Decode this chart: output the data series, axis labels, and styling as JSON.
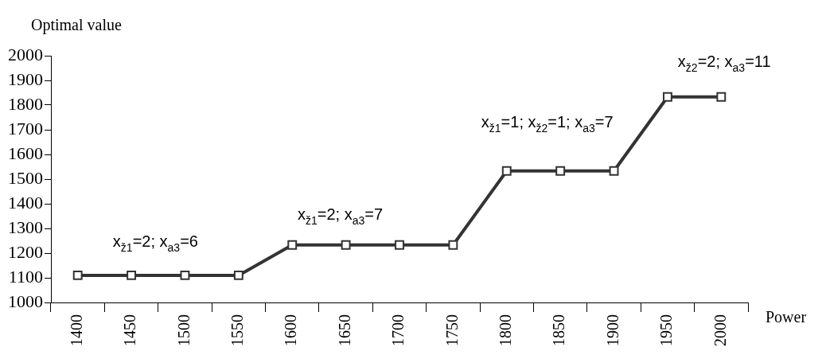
{
  "chart_data": {
    "type": "line",
    "xlabel": "Power",
    "ylabel": "Optimal value",
    "categories": [
      "1400",
      "1450",
      "1500",
      "1550",
      "1600",
      "1650",
      "1700",
      "1750",
      "1800",
      "1850",
      "1900",
      "1950",
      "2000"
    ],
    "series": [
      {
        "color": "#333333",
        "values": [
          1110,
          1110,
          1110,
          1110,
          1233,
          1233,
          1233,
          1233,
          1533,
          1533,
          1533,
          1833,
          1833
        ]
      }
    ],
    "ylim": [
      1000,
      2000
    ],
    "yticks": [
      1000,
      1100,
      1200,
      1300,
      1400,
      1500,
      1600,
      1700,
      1800,
      1900,
      2000
    ],
    "marker": "square",
    "line_style": "solid",
    "legend": false,
    "annotations": [
      "x$_{ž1}$=2; x$_{a3}$=6",
      "x$_{ž1}$=2; x$_{a3}$=7",
      "x$_{ž1}$=1; x$_{ž2}$=1; x$_{a3}$=7",
      "x$_{ž2}$=2; x$_{a3}$=11"
    ]
  }
}
